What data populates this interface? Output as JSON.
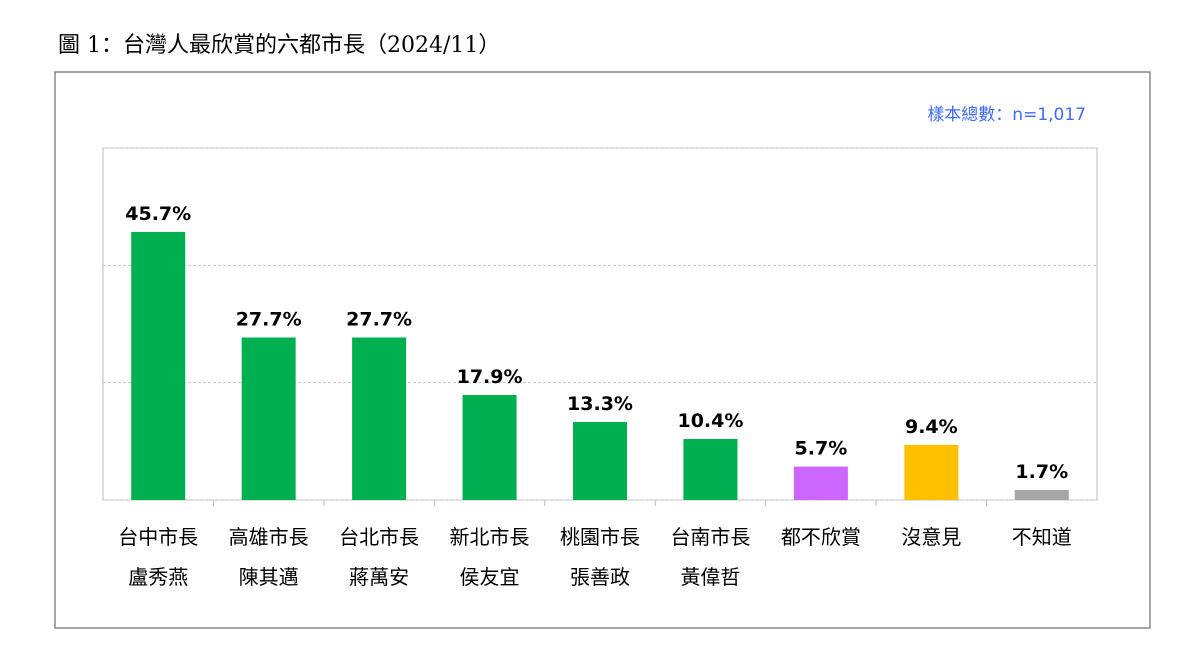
{
  "chart_data": {
    "type": "bar",
    "title": "圖 1：台灣人最欣賞的六都市長（2024/11）",
    "annotation": "樣本總數：n=1,017",
    "categories": [
      [
        "台中市長",
        "盧秀燕"
      ],
      [
        "高雄市長",
        "陳其邁"
      ],
      [
        "台北市長",
        "蔣萬安"
      ],
      [
        "新北市長",
        "侯友宜"
      ],
      [
        "桃園市長",
        "張善政"
      ],
      [
        "台南市長",
        "黃偉哲"
      ],
      [
        "都不欣賞"
      ],
      [
        "沒意見"
      ],
      [
        "不知道"
      ]
    ],
    "values": [
      45.7,
      27.7,
      27.7,
      17.9,
      13.3,
      10.4,
      5.7,
      9.4,
      1.7
    ],
    "value_labels": [
      "45.7%",
      "27.7%",
      "27.7%",
      "17.9%",
      "13.3%",
      "10.4%",
      "5.7%",
      "9.4%",
      "1.7%"
    ],
    "colors": [
      "#00b050",
      "#00b050",
      "#00b050",
      "#00b050",
      "#00b050",
      "#00b050",
      "#cc66ff",
      "#ffc000",
      "#a6a6a6"
    ],
    "ylim": [
      0,
      60
    ],
    "yticks": [
      0,
      20,
      40,
      60
    ],
    "grid": true
  }
}
